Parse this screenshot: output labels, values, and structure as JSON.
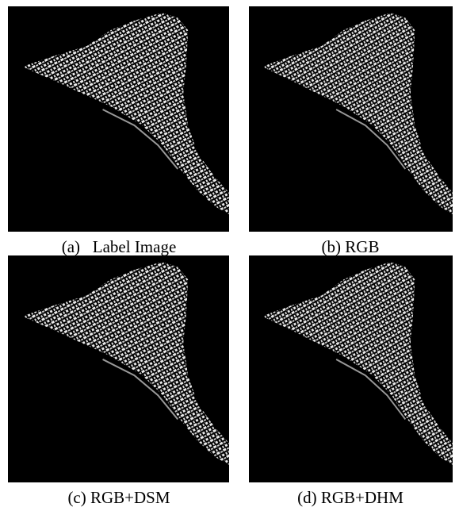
{
  "panels": [
    {
      "caption": "(a)   Label Image"
    },
    {
      "caption": "(b) RGB"
    },
    {
      "caption": "(c) RGB+DSM"
    },
    {
      "caption": "(d) RGB+DHM"
    }
  ]
}
